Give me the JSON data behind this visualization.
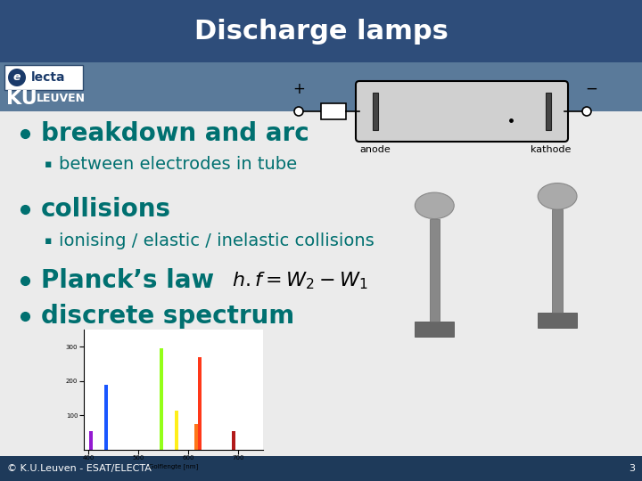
{
  "title": "Discharge lamps",
  "title_color": "#ffffff",
  "title_bg_color": "#2e4d7a",
  "header_bg_color": "#5a7a9a",
  "body_bg_color": "#ebebeb",
  "footer_bg_color": "#1e3a5a",
  "footer_text": "© K.U.Leuven - ESAT/ELECTA",
  "footer_number": "3",
  "bullet_color": "#007070",
  "title_fontsize": 22,
  "bullet_fontsize": 20,
  "sub_bullet_fontsize": 14,
  "footer_fontsize": 8
}
